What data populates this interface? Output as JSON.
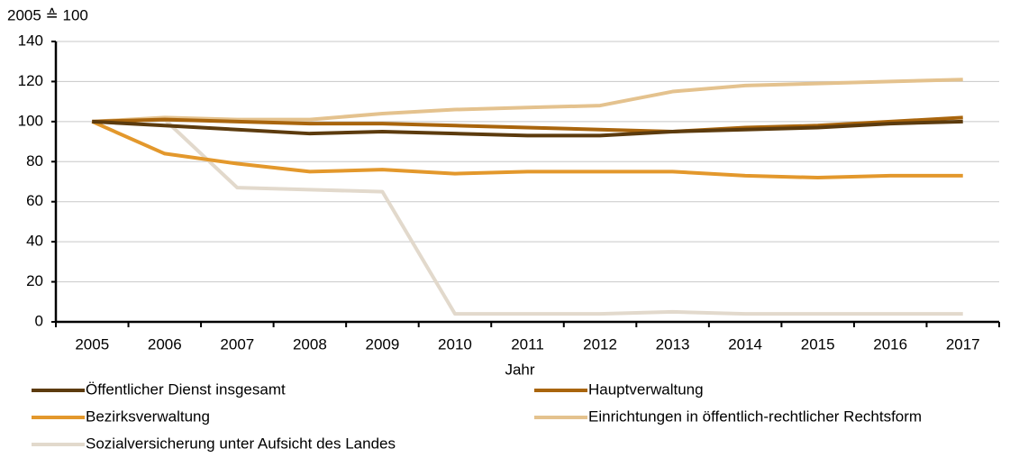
{
  "chart_data": {
    "type": "line",
    "y_axis_label": "2005 ≙ 100",
    "x_axis_label": "Jahr",
    "categories": [
      "2005",
      "2006",
      "2007",
      "2008",
      "2009",
      "2010",
      "2011",
      "2012",
      "2013",
      "2014",
      "2015",
      "2016",
      "2017"
    ],
    "series": [
      {
        "name": "Öffentlicher Dienst insgesamt",
        "color": "#5c3b0e",
        "values": [
          100,
          98,
          96,
          94,
          95,
          94,
          93,
          93,
          95,
          96,
          97,
          99,
          100
        ]
      },
      {
        "name": "Hauptverwaltung",
        "color": "#a9650d",
        "values": [
          100,
          101,
          100,
          99,
          99,
          98,
          97,
          96,
          95,
          97,
          98,
          100,
          102
        ]
      },
      {
        "name": "Bezirksverwaltung",
        "color": "#e3982c",
        "values": [
          100,
          84,
          79,
          75,
          76,
          74,
          75,
          75,
          75,
          73,
          72,
          73,
          73
        ]
      },
      {
        "name": "Einrichtungen in öffentlich-rechtlicher Rechtsform",
        "color": "#e4c28e",
        "values": [
          100,
          102,
          101,
          101,
          104,
          106,
          107,
          108,
          115,
          118,
          119,
          120,
          121
        ]
      },
      {
        "name": "Sozialversicherung unter Aufsicht des Landes",
        "color": "#e2d9cc",
        "values": [
          100,
          101,
          67,
          66,
          65,
          4,
          4,
          4,
          5,
          4,
          4,
          4,
          4
        ]
      }
    ],
    "ylim": [
      0,
      140
    ],
    "yticks": [
      0,
      20,
      40,
      60,
      80,
      100,
      120,
      140
    ],
    "grid": true
  }
}
